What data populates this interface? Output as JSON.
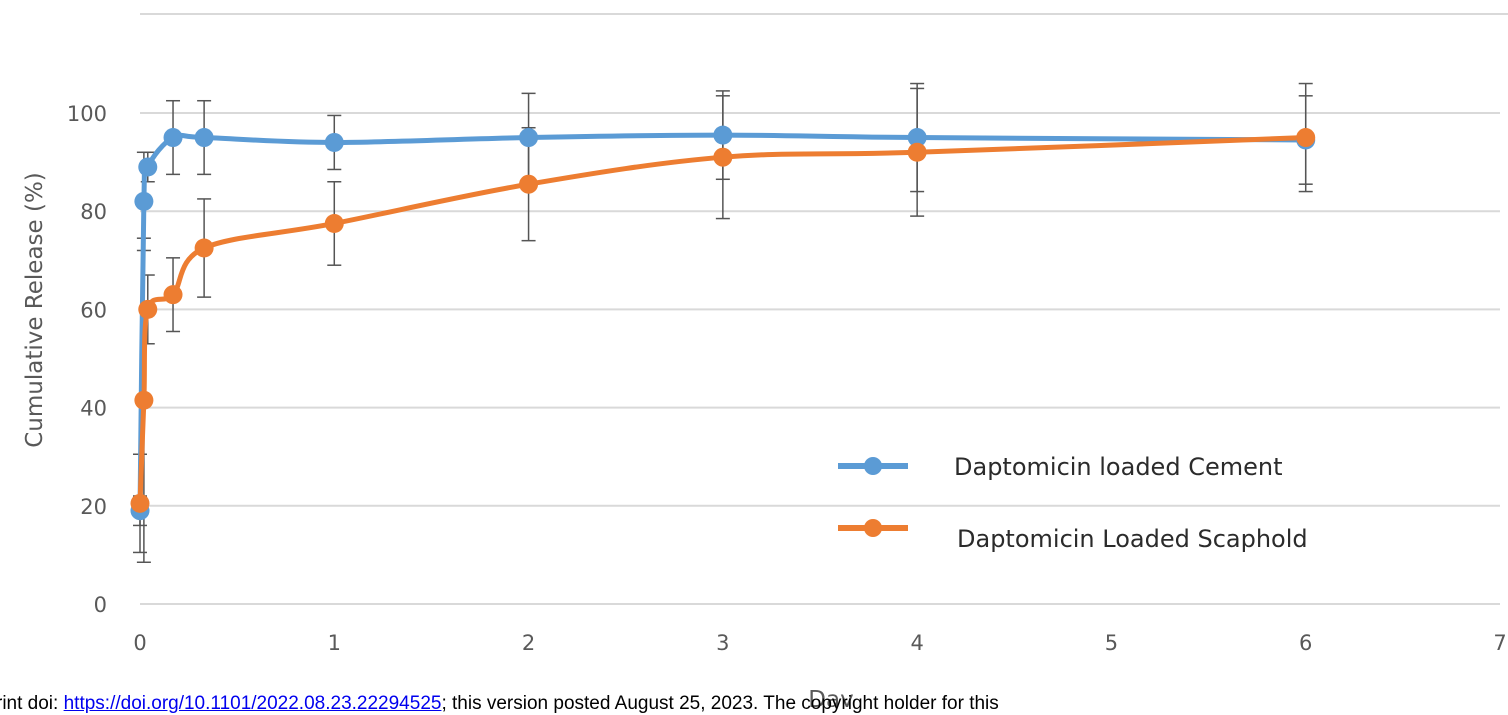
{
  "chart_data": {
    "type": "line",
    "title": "",
    "xlabel": "Day",
    "ylabel": "Cumulative Release (%)",
    "xlim": [
      0,
      7
    ],
    "ylim": [
      0,
      100
    ],
    "x_ticks": [
      "0",
      "1",
      "2",
      "3",
      "4",
      "5",
      "6",
      "7"
    ],
    "y_ticks": [
      "0",
      "20",
      "40",
      "60",
      "80",
      "100"
    ],
    "grid": "horizontal",
    "legend_position": "center-right",
    "series": [
      {
        "name": "Daptomicin loaded Cement",
        "color": "#5b9bd5",
        "x": [
          0,
          0.02,
          0.04,
          0.17,
          0.33,
          1,
          2,
          3,
          4,
          6
        ],
        "y": [
          19,
          82,
          89,
          95,
          95,
          94,
          95,
          95.5,
          95,
          94.5
        ],
        "error": [
          3,
          10,
          3,
          7.5,
          7.5,
          5.5,
          9,
          9,
          11,
          9
        ]
      },
      {
        "name": "Daptomicin Loaded Scaphold",
        "color": "#ed7d31",
        "x": [
          0,
          0.02,
          0.04,
          0.17,
          0.33,
          1,
          2,
          3,
          4,
          6
        ],
        "y": [
          20.5,
          41.5,
          60,
          63,
          72.5,
          77.5,
          85.5,
          91,
          92,
          95
        ],
        "error": [
          10,
          33,
          7,
          7.5,
          10,
          8.5,
          11.5,
          12.5,
          13,
          11
        ]
      }
    ]
  },
  "footer": {
    "prefix": "rint doi: ",
    "link_text": "https://doi.org/10.1101/2022.08.23.22294525",
    "suffix": "; this version posted August 25, 2023. The copyright holder for this"
  }
}
